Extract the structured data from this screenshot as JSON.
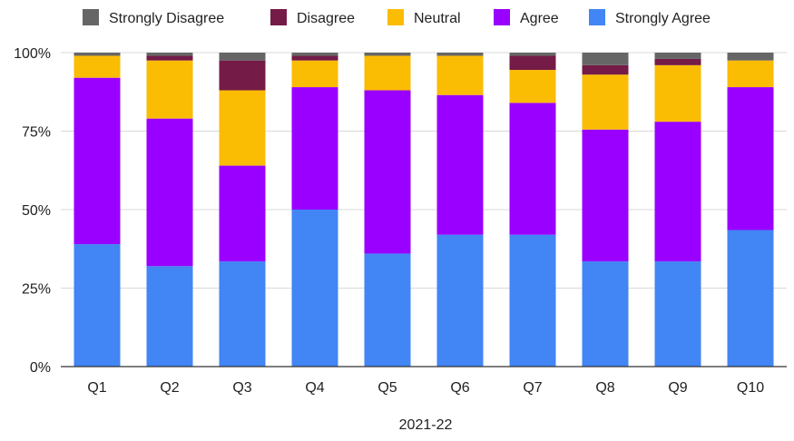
{
  "chart_data": {
    "type": "bar",
    "stacked": true,
    "percent": true,
    "title": "",
    "xlabel": "2021-22",
    "ylabel": "",
    "ylim": [
      0,
      100
    ],
    "y_ticks": [
      {
        "value": 0,
        "label": "0%"
      },
      {
        "value": 25,
        "label": "25%"
      },
      {
        "value": 50,
        "label": "50%"
      },
      {
        "value": 75,
        "label": "75%"
      },
      {
        "value": 100,
        "label": "100%"
      }
    ],
    "grid": true,
    "legend_position": "top",
    "categories": [
      "Q1",
      "Q2",
      "Q3",
      "Q4",
      "Q5",
      "Q6",
      "Q7",
      "Q8",
      "Q9",
      "Q10"
    ],
    "series": [
      {
        "name": "Strongly Agree",
        "color": "#4285f4",
        "values": [
          39,
          32,
          33.5,
          50,
          36,
          42,
          42,
          33.5,
          33.5,
          43.5
        ]
      },
      {
        "name": "Agree",
        "color": "#9900ff",
        "values": [
          53,
          47,
          30.5,
          39,
          52,
          44.5,
          42,
          42,
          44.5,
          45.5
        ]
      },
      {
        "name": "Neutral",
        "color": "#fbbc04",
        "values": [
          7,
          18.5,
          24,
          8.5,
          11,
          12.5,
          10.5,
          17.5,
          18,
          8.5
        ]
      },
      {
        "name": "Disagree",
        "color": "#741b47",
        "values": [
          0,
          1.5,
          9.5,
          1.5,
          0,
          0,
          4.5,
          3,
          2,
          0
        ]
      },
      {
        "name": "Strongly Disagree",
        "color": "#666666",
        "values": [
          1,
          1,
          2.5,
          1,
          1,
          1,
          1,
          4,
          2,
          2.5
        ]
      }
    ],
    "legend_order": [
      "Strongly Disagree",
      "Disagree",
      "Neutral",
      "Agree",
      "Strongly Agree"
    ]
  }
}
